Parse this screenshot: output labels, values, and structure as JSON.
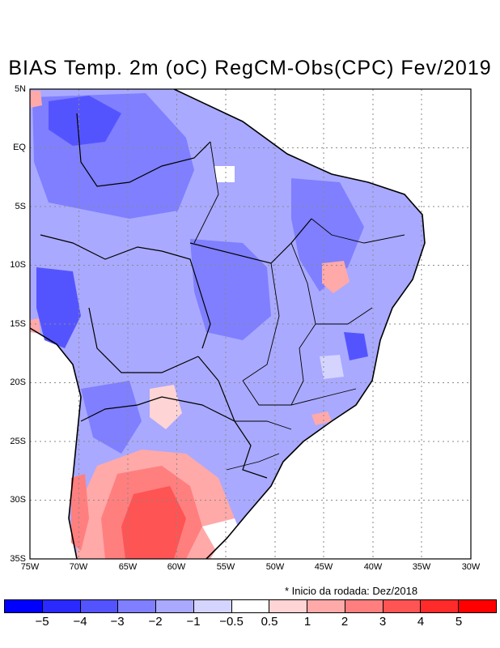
{
  "title": "BIAS Temp. 2m (oC) RegCM-Obs(CPC) Fev/2019",
  "note": "* Inicio da rodada: Dez/2018",
  "map": {
    "lat_labels": [
      "5N",
      "EQ",
      "5S",
      "10S",
      "15S",
      "20S",
      "25S",
      "30S",
      "35S"
    ],
    "lon_labels": [
      "75W",
      "70W",
      "65W",
      "60W",
      "55W",
      "50W",
      "45W",
      "40W",
      "35W",
      "30W"
    ],
    "lat_range": [
      5,
      -35
    ],
    "lon_range": [
      -75,
      -30
    ]
  },
  "colorbar": {
    "colors": [
      "#0000ff",
      "#2a2aff",
      "#5454ff",
      "#7f7fff",
      "#a9a9ff",
      "#d4d4ff",
      "#ffffff",
      "#ffd4d4",
      "#ffa9a9",
      "#ff7f7f",
      "#ff5454",
      "#ff2a2a",
      "#ff0000"
    ],
    "labels": [
      "−5",
      "−4",
      "−3",
      "−2",
      "−1",
      "−0.5",
      "0.5",
      "1",
      "2",
      "3",
      "4",
      "5"
    ]
  }
}
